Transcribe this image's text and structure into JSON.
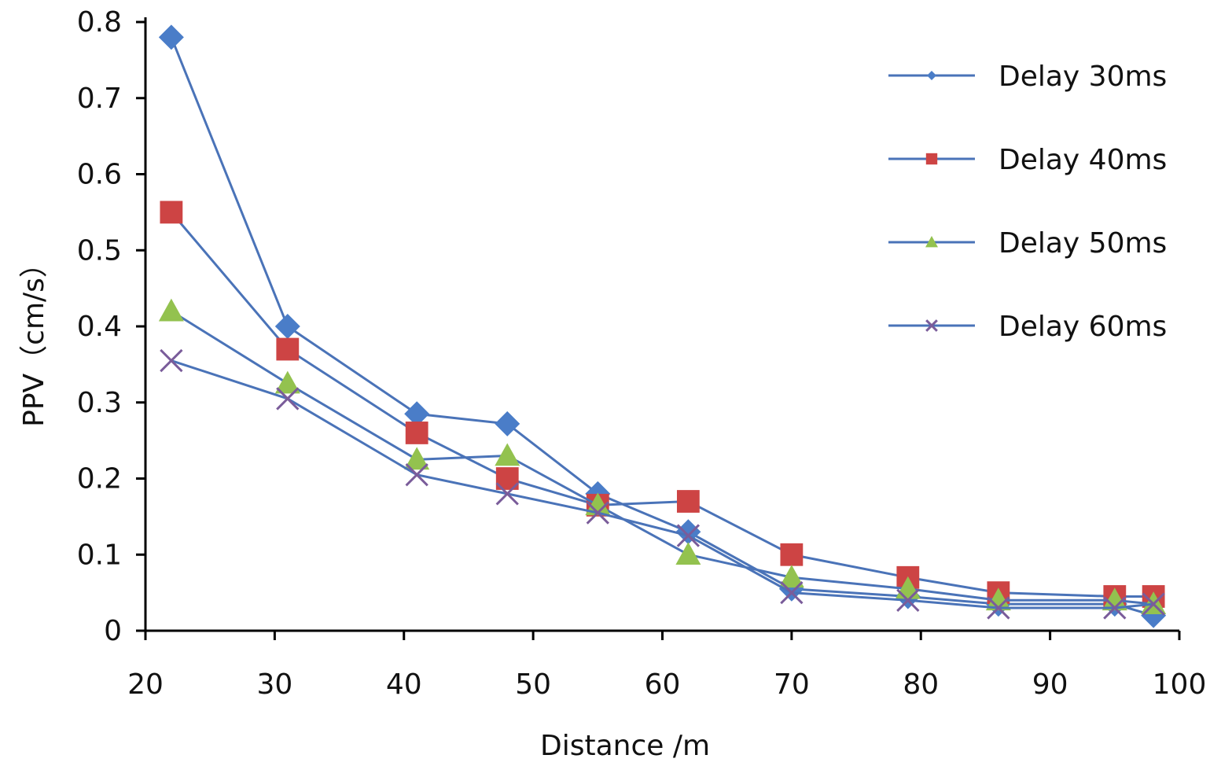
{
  "chart_data": {
    "type": "line",
    "title": "",
    "xlabel": "Distance /m",
    "ylabel": "PPV（cm/s）",
    "xlim": [
      20,
      100
    ],
    "ylim": [
      0,
      0.8
    ],
    "xticks": [
      "20",
      "30",
      "40",
      "50",
      "60",
      "70",
      "80",
      "90",
      "100"
    ],
    "yticks": [
      "0",
      "0.1",
      "0.2",
      "0.3",
      "0.4",
      "0.5",
      "0.6",
      "0.7",
      "0.8"
    ],
    "x": [
      22,
      31,
      41,
      48,
      55,
      62,
      70,
      79,
      86,
      95,
      98
    ],
    "legend_position": "top-right",
    "grid": false,
    "series": [
      {
        "name": "Delay 30ms",
        "marker": "diamond",
        "color": "#4a7dc8",
        "values": [
          0.78,
          0.4,
          0.285,
          0.272,
          0.18,
          0.13,
          0.055,
          0.045,
          0.035,
          0.035,
          0.02
        ]
      },
      {
        "name": "Delay 40ms",
        "marker": "square",
        "color": "#cd4444",
        "values": [
          0.55,
          0.37,
          0.26,
          0.2,
          0.165,
          0.17,
          0.1,
          0.07,
          0.05,
          0.045,
          0.045
        ]
      },
      {
        "name": "Delay 50ms",
        "marker": "triangle",
        "color": "#93c24f",
        "values": [
          0.42,
          0.325,
          0.225,
          0.23,
          0.165,
          0.1,
          0.07,
          0.055,
          0.04,
          0.04,
          0.035
        ]
      },
      {
        "name": "Delay 60ms",
        "marker": "x",
        "color": "#7a5c9a",
        "values": [
          0.355,
          0.305,
          0.205,
          0.18,
          0.155,
          0.125,
          0.05,
          0.04,
          0.03,
          0.03,
          0.035
        ]
      }
    ],
    "line_color": "#4a73b8"
  }
}
